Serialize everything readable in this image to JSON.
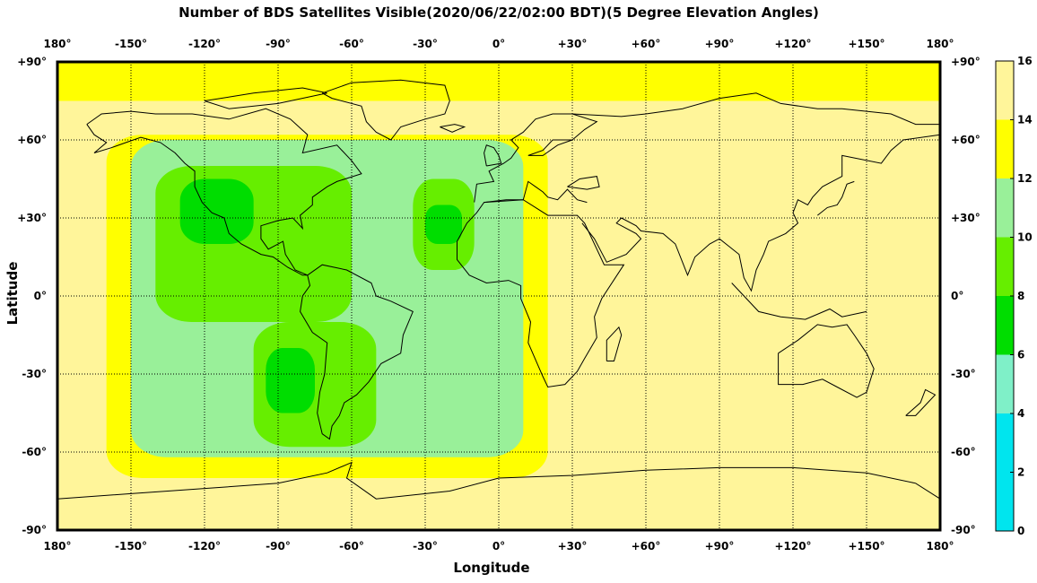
{
  "chart_data": {
    "type": "heatmap",
    "title": "Number of BDS Satellites Visible(2020/06/22/02:00 BDT)(5 Degree Elevation Angles)",
    "xlabel": "Longitude",
    "ylabel": "Latitude",
    "xlim": [
      -180,
      180
    ],
    "ylim": [
      -90,
      90
    ],
    "x_ticks": [
      "180°",
      "-150°",
      "-120°",
      "-90°",
      "-60°",
      "-30°",
      "0°",
      "+30°",
      "+60°",
      "+90°",
      "+120°",
      "+150°",
      "180°"
    ],
    "y_ticks": [
      "+90°",
      "+60°",
      "+30°",
      "0°",
      "-30°",
      "-60°",
      "-90°"
    ],
    "grid": true,
    "colorbar": {
      "ticks": [
        "16",
        "14",
        "12",
        "10",
        "8",
        "6",
        "4",
        "2",
        "0"
      ],
      "bands": [
        {
          "min": 0,
          "max": 4,
          "color": "#00e5ee"
        },
        {
          "min": 4,
          "max": 6,
          "color": "#7ff0c8"
        },
        {
          "min": 6,
          "max": 8,
          "color": "#00dd00"
        },
        {
          "min": 8,
          "max": 10,
          "color": "#66ee00"
        },
        {
          "min": 10,
          "max": 12,
          "color": "#99f099"
        },
        {
          "min": 12,
          "max": 14,
          "color": "#ffff00"
        },
        {
          "min": 14,
          "max": 16,
          "color": "#fff59a"
        }
      ]
    },
    "regions": [
      {
        "value": 13,
        "lon": [
          -180,
          180
        ],
        "lat": [
          75,
          90
        ]
      },
      {
        "value": 13,
        "lon": [
          -160,
          20
        ],
        "lat": [
          -70,
          62
        ]
      },
      {
        "value": 11,
        "lon": [
          -150,
          10
        ],
        "lat": [
          -62,
          60
        ]
      },
      {
        "value": 9,
        "lon": [
          -140,
          -60
        ],
        "lat": [
          -10,
          50
        ]
      },
      {
        "value": 9,
        "lon": [
          -100,
          -50
        ],
        "lat": [
          -58,
          -10
        ]
      },
      {
        "value": 9,
        "lon": [
          -35,
          -10
        ],
        "lat": [
          10,
          45
        ]
      },
      {
        "value": 7,
        "lon": [
          -95,
          -75
        ],
        "lat": [
          -45,
          -20
        ]
      },
      {
        "value": 7,
        "lon": [
          -130,
          -100
        ],
        "lat": [
          20,
          45
        ]
      },
      {
        "value": 7,
        "lon": [
          -30,
          -15
        ],
        "lat": [
          20,
          35
        ]
      }
    ]
  }
}
